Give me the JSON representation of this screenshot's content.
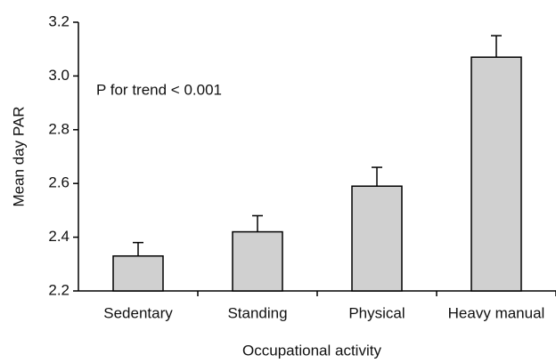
{
  "chart_data": {
    "type": "bar",
    "annotation": "P for trend < 0.001",
    "x_label": "Occupational activity",
    "y_label": "Mean day PAR",
    "categories": [
      "Sedentary",
      "Standing",
      "Physical",
      "Heavy manual"
    ],
    "values": [
      2.33,
      2.42,
      2.59,
      3.07
    ],
    "errors": [
      0.05,
      0.06,
      0.07,
      0.08
    ],
    "color": "#d0d0d0",
    "ylim": [
      2.2,
      3.2
    ],
    "yticks": [
      2.2,
      2.4,
      2.6,
      2.8,
      {
        "value": 3,
        "label": "3.0"
      },
      3.2
    ],
    "grid": false
  }
}
